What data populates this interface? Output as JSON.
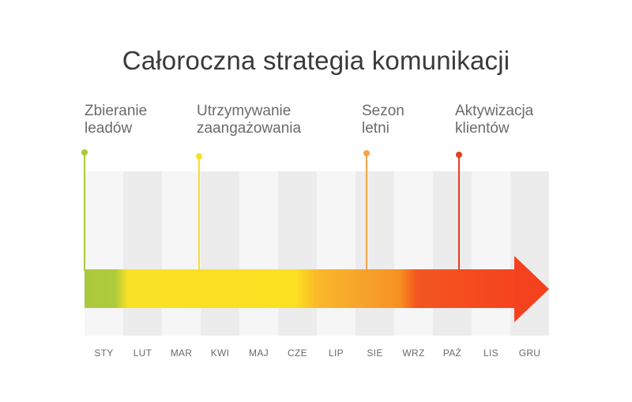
{
  "title": "Całoroczna strategia komunikacji",
  "phases": [
    {
      "line1": "Zbieranie",
      "line2": "leadów",
      "color": "#a9c93c"
    },
    {
      "line1": "Utrzymywanie",
      "line2": "zaangażowania",
      "color": "#f7e027"
    },
    {
      "line1": "Sezon",
      "line2": "letni",
      "color": "#f6a34a"
    },
    {
      "line1": "Aktywizacja",
      "line2": "klientów",
      "color": "#e0401f"
    }
  ],
  "months": [
    "STY",
    "LUT",
    "MAR",
    "KWI",
    "MAJ",
    "CZE",
    "LIP",
    "SIE",
    "WRZ",
    "PAŹ",
    "LIS",
    "GRU"
  ],
  "colors": {
    "column_light": "#f6f6f6",
    "column_dark": "#ececec",
    "arrow_start": "#a9c93c",
    "arrow_end": "#f5431f"
  }
}
